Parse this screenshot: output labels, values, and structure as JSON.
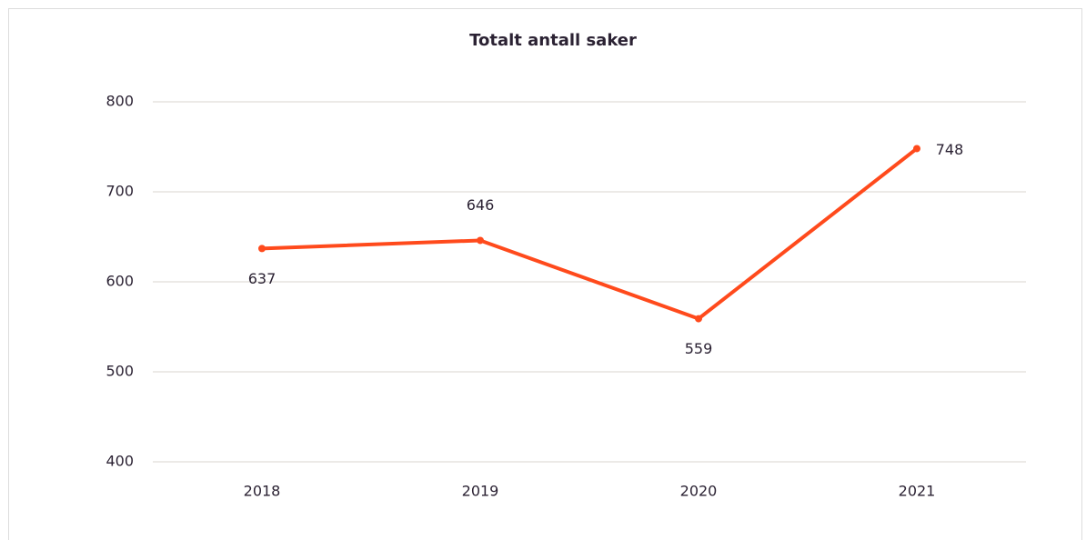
{
  "chart_data": {
    "type": "line",
    "title": "Totalt antall saker",
    "categories": [
      "2018",
      "2019",
      "2020",
      "2021"
    ],
    "series": [
      {
        "name": "Totalt antall saker",
        "color": "#ff4a1c",
        "values": [
          637,
          646,
          559,
          748
        ]
      }
    ],
    "ylim": [
      400,
      800
    ],
    "yticks": [
      400,
      500,
      600,
      700,
      800
    ],
    "grid": true
  }
}
